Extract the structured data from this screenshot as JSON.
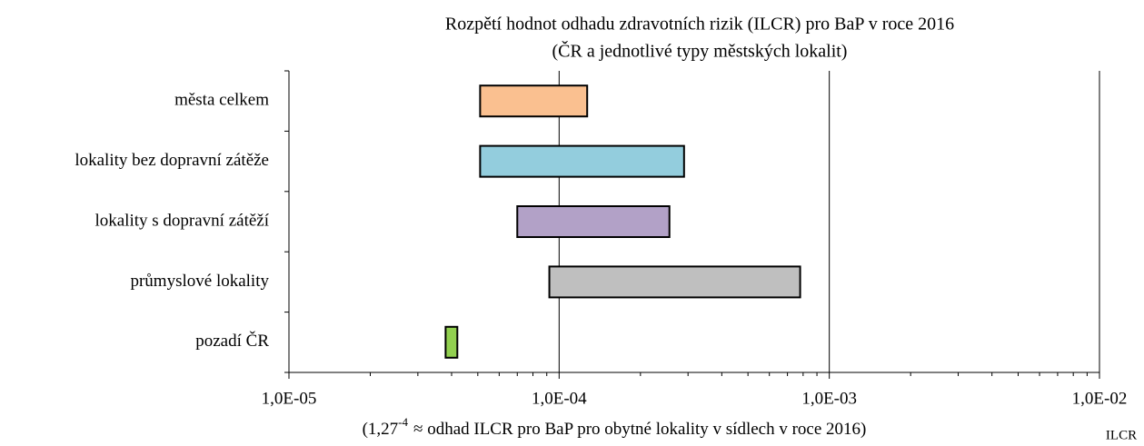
{
  "chart_data": {
    "type": "range-bar",
    "title": "Rozpětí hodnot odhadu zdravotních rizik (ILCR) pro BaP v roce 2016",
    "subtitle": "(ČR a jednotlivé typy městských lokalit)",
    "categories": [
      "města celkem",
      "lokality bez dopravní zátěže",
      "lokality s dopravní zátěží",
      "průmyslové lokality",
      "pozadí ČR"
    ],
    "starts": [
      5.1e-05,
      5.1e-05,
      7e-05,
      9.2e-05,
      3.8e-05
    ],
    "ends": [
      0.000127,
      0.00029,
      0.000256,
      0.00078,
      4.2e-05
    ],
    "colors": [
      "#fac090",
      "#93cddd",
      "#b2a1c7",
      "#bfbfbf",
      "#92d050"
    ],
    "x_scale": "log",
    "xlim": [
      1e-05,
      0.01
    ],
    "xticks": [
      {
        "value": 1e-05,
        "label": "1,0E-05"
      },
      {
        "value": 0.0001,
        "label": "1,0E-04"
      },
      {
        "value": 0.001,
        "label": "1,0E-03"
      },
      {
        "value": 0.01,
        "label": "1,0E-02"
      }
    ],
    "xminor_ticks": [
      2e-05,
      3e-05,
      4e-05,
      5e-05,
      6e-05,
      7e-05,
      8e-05,
      9e-05,
      0.0002,
      0.0003,
      0.0004,
      0.0005,
      0.0006,
      0.0007,
      0.0008,
      0.0009,
      0.002,
      0.003,
      0.004,
      0.005,
      0.006,
      0.007,
      0.008,
      0.009
    ],
    "grid": true,
    "xlabel": "ILCR",
    "annotation": {
      "base": "(1,27",
      "exponent": "-4",
      "text": "≈ odhad ILCR pro BaP pro obytné lokality v sídlech v roce 2016)"
    }
  }
}
